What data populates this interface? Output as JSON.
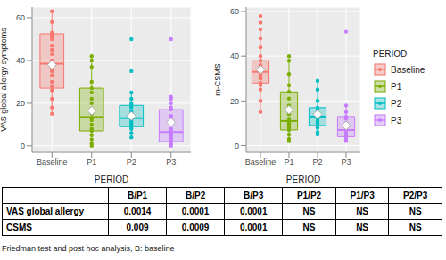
{
  "chart_data": [
    {
      "type": "boxplot",
      "y_label": "VAS global allergy symptoms",
      "x_label": "PERIOD",
      "categories": [
        "Baseline",
        "P1",
        "P2",
        "P3"
      ],
      "ylim": [
        -3,
        65
      ],
      "yticks": [
        0,
        20,
        40,
        60
      ],
      "grid": true,
      "series": [
        {
          "name": "Baseline",
          "color": "#F8766D",
          "whisker_low": 15,
          "q1": 27,
          "median": 38.5,
          "q3": 52.5,
          "whisker_high": 63,
          "mean": 38,
          "points": [
            63,
            58,
            53,
            52,
            51,
            50,
            47,
            45,
            43,
            40,
            38,
            36,
            35,
            33,
            30,
            28,
            26,
            22,
            18,
            15
          ]
        },
        {
          "name": "P1",
          "color": "#7CAE00",
          "whisker_low": 0,
          "q1": 7,
          "median": 13.5,
          "q3": 27,
          "whisker_high": 42,
          "mean": 16.5,
          "points": [
            42,
            40,
            37,
            30,
            27,
            25,
            22,
            20,
            17,
            15,
            13,
            12,
            10,
            8,
            7,
            5,
            3,
            1,
            0
          ]
        },
        {
          "name": "P2",
          "color": "#00BFC4",
          "whisker_low": 4,
          "q1": 9,
          "median": 13,
          "q3": 19,
          "whisker_high": 25,
          "mean": 14,
          "points": [
            50,
            35,
            25,
            22,
            20,
            19,
            18,
            16,
            15,
            14,
            13,
            12,
            11,
            10,
            9,
            8,
            6,
            4
          ]
        },
        {
          "name": "P3",
          "color": "#C77CFF",
          "whisker_low": 0,
          "q1": 2,
          "median": 6.5,
          "q3": 17,
          "whisker_high": 23,
          "mean": 11,
          "points": [
            50,
            23,
            22,
            20,
            18,
            17,
            14,
            12,
            8,
            7,
            6,
            5,
            4,
            3,
            2,
            1,
            0
          ]
        }
      ]
    },
    {
      "type": "boxplot",
      "y_label": "m-CSMS",
      "x_label": "PERIOD",
      "categories": [
        "Baseline",
        "P1",
        "P2",
        "P3"
      ],
      "ylim": [
        -3,
        62
      ],
      "yticks": [
        0,
        20,
        40,
        60
      ],
      "grid": true,
      "legend": "right",
      "legend_title": "PERIOD",
      "series": [
        {
          "name": "Baseline",
          "color": "#F8766D",
          "whisker_low": 15,
          "q1": 28,
          "median": 33,
          "q3": 38,
          "whisker_high": 52,
          "mean": 34,
          "points": [
            58,
            55,
            52,
            48,
            44,
            40,
            38,
            36,
            35,
            33,
            32,
            31,
            30,
            28,
            27,
            25,
            20,
            15
          ]
        },
        {
          "name": "P1",
          "color": "#7CAE00",
          "whisker_low": 2,
          "q1": 7,
          "median": 11,
          "q3": 24,
          "whisker_high": 39,
          "mean": 16,
          "points": [
            40,
            38,
            32,
            27,
            24,
            21,
            18,
            14,
            12,
            11,
            10,
            9,
            8,
            7,
            5,
            3,
            2
          ]
        },
        {
          "name": "P2",
          "color": "#00BFC4",
          "whisker_low": 5,
          "q1": 9,
          "median": 13,
          "q3": 17,
          "whisker_high": 29,
          "mean": 14,
          "points": [
            29,
            25,
            20,
            17,
            16,
            15,
            14,
            13,
            12,
            11,
            10,
            9,
            8,
            6,
            5
          ]
        },
        {
          "name": "P3",
          "color": "#C77CFF",
          "whisker_low": 2,
          "q1": 4,
          "median": 7,
          "q3": 13,
          "whisker_high": 18,
          "mean": 9,
          "points": [
            51,
            18,
            15,
            13,
            12,
            10,
            8,
            7,
            6,
            5,
            4,
            3,
            2
          ]
        }
      ]
    }
  ],
  "table": {
    "header": [
      "",
      "B/P1",
      "B/P2",
      "B/P3",
      "P1/P2",
      "P1/P3",
      "P2/P3"
    ],
    "rows": [
      [
        "VAS global allergy",
        "0.0014",
        "0.0001",
        "0.0001",
        "NS",
        "NS",
        "NS"
      ],
      [
        "CSMS",
        "0.009",
        "0.0009",
        "0.0001",
        "NS",
        "NS",
        "NS"
      ]
    ]
  },
  "caption": "Friedman test and post hoc analysis, B: baseline"
}
